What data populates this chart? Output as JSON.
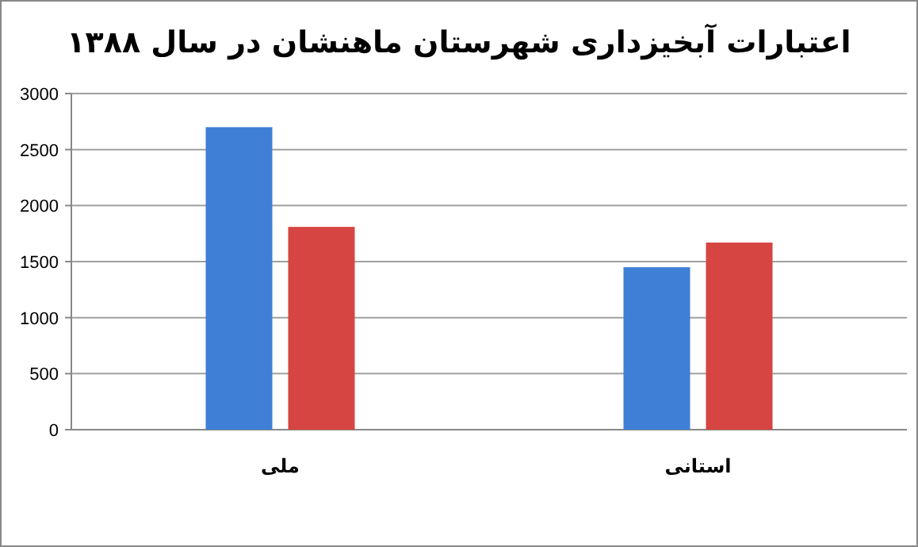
{
  "chart_data": {
    "type": "bar",
    "title": "اعتبارات آبخیزداری شهرستان ماهنشان در سال ۱۳۸۸",
    "categories": [
      "ملی",
      "استانی"
    ],
    "series": [
      {
        "color": "#3f7fd6",
        "values": [
          2700,
          1450
        ]
      },
      {
        "color": "#d64541",
        "values": [
          1810,
          1670
        ]
      }
    ],
    "ylim": [
      0,
      3000
    ],
    "yticks": [
      0,
      500,
      1000,
      1500,
      2000,
      2500,
      3000
    ],
    "grid": "y"
  }
}
